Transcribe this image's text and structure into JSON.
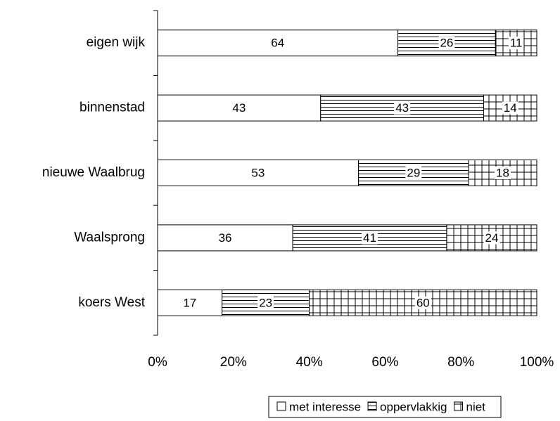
{
  "chart_data": {
    "type": "bar",
    "orientation": "horizontal",
    "stacking": "percent",
    "categories": [
      "eigen wijk",
      "binnenstad",
      "nieuwe Waalbrug",
      "Waalsprong",
      "koers West"
    ],
    "series": [
      {
        "name": "met interesse",
        "color": "#ffffff",
        "pattern": "none",
        "values": [
          64,
          43,
          53,
          36,
          17
        ]
      },
      {
        "name": "oppervlakkig",
        "color": "#ffffff",
        "pattern": "horizontal",
        "values": [
          26,
          43,
          29,
          41,
          23
        ]
      },
      {
        "name": "niet",
        "color": "#ffffff",
        "pattern": "grid",
        "values": [
          11,
          14,
          18,
          24,
          60
        ]
      }
    ],
    "xlim": [
      0,
      100
    ],
    "xticks": [
      {
        "value": 0,
        "label": "0%"
      },
      {
        "value": 20,
        "label": "20%"
      },
      {
        "value": 40,
        "label": "40%"
      },
      {
        "value": 60,
        "label": "60%"
      },
      {
        "value": 80,
        "label": "80%"
      },
      {
        "value": 100,
        "label": "100%"
      }
    ],
    "grid": false,
    "legend": "bottom"
  }
}
